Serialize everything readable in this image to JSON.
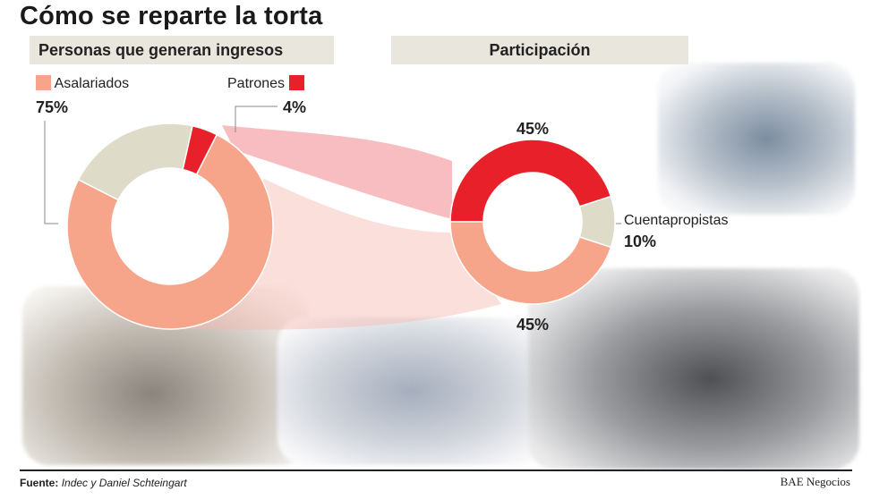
{
  "title": "Cómo se reparte la torta",
  "headers": {
    "left": "Personas que generan ingresos",
    "right": "Participación"
  },
  "colors": {
    "asalariados": "#f6a58a",
    "patrones": "#e8202a",
    "cuentapropistas": "#dedbc8",
    "header_bg": "#e9e7dd",
    "band": "#f4a7ab"
  },
  "chart_data": [
    {
      "type": "pie",
      "variant": "donut",
      "title": "Personas que generan ingresos",
      "slices": [
        {
          "label": "Asalariados",
          "value": 75,
          "display": "75%",
          "color": "#f6a58a"
        },
        {
          "label": "",
          "value": 21,
          "display": "",
          "color": "#dedbc8"
        },
        {
          "label": "Patrones",
          "value": 4,
          "display": "4%",
          "color": "#e8202a"
        }
      ]
    },
    {
      "type": "pie",
      "variant": "donut",
      "title": "Participación",
      "slices": [
        {
          "label": "",
          "value": 45,
          "display": "45%",
          "color": "#e8202a"
        },
        {
          "label": "Cuentapropistas",
          "value": 10,
          "display": "10%",
          "color": "#dedbc8"
        },
        {
          "label": "",
          "value": 45,
          "display": "45%",
          "color": "#f6a58a"
        }
      ]
    }
  ],
  "footer": {
    "source_label": "Fuente:",
    "source": "Indec y Daniel Schteingart",
    "brand": "BAE Negocios"
  }
}
